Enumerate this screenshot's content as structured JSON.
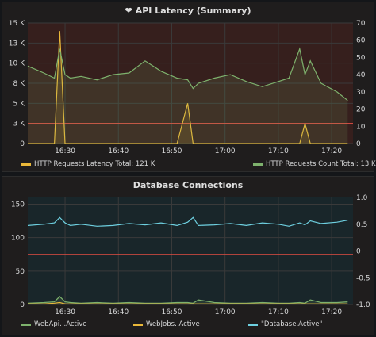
{
  "colors": {
    "latency": "#EAB839",
    "count": "#7EB26D",
    "webapi": "#7EB26D",
    "webjobs": "#EAB839",
    "database": "#6ED0E0",
    "threshold": "#E24D42"
  },
  "panel1": {
    "icon": "heart-icon",
    "title": "API Latency (Summary)",
    "y_ticks_left": [
      "0",
      "3 K",
      "5 K",
      "8 K",
      "10 K",
      "13 K",
      "15 K"
    ],
    "y_ticks_right": [
      "0",
      "10",
      "20",
      "30",
      "40",
      "50",
      "60",
      "70"
    ],
    "x_ticks": [
      "16:30",
      "16:40",
      "16:50",
      "17:00",
      "17:10",
      "17:20"
    ],
    "legend": [
      {
        "label": "HTTP Requests Latency  Total: 121 K"
      },
      {
        "label": "HTTP Requests Count  Total: 13 K"
      }
    ]
  },
  "panel2": {
    "title": "Database Connections",
    "y_ticks_left": [
      "0",
      "50",
      "100",
      "150"
    ],
    "y_ticks_right": [
      "-1.0",
      "-0.5",
      "0",
      "0.5",
      "1.0"
    ],
    "x_ticks": [
      "16:30",
      "16:40",
      "16:50",
      "17:00",
      "17:10",
      "17:20"
    ],
    "legend": [
      {
        "label": "WebApi.              .Active"
      },
      {
        "label": "WebJobs.              Active"
      },
      {
        "label": "\"Database.Active\""
      }
    ]
  },
  "chart_data": [
    {
      "type": "line",
      "title": "API Latency (Summary)",
      "x": [
        "16:23",
        "16:26",
        "16:28",
        "16:29",
        "16:30",
        "16:31",
        "16:33",
        "16:36",
        "16:39",
        "16:42",
        "16:45",
        "16:48",
        "16:51",
        "16:53",
        "16:54",
        "16:55",
        "16:58",
        "17:01",
        "17:04",
        "17:07",
        "17:10",
        "17:12",
        "17:14",
        "17:15",
        "17:16",
        "17:18",
        "17:21",
        "17:23"
      ],
      "ylim_left": [
        0,
        15000
      ],
      "ylim_right": [
        0,
        70
      ],
      "threshold_left": 2500,
      "series": [
        {
          "name": "HTTP Requests Latency",
          "axis": "left",
          "values": [
            0,
            0,
            0,
            14000,
            0,
            0,
            0,
            0,
            0,
            0,
            0,
            0,
            0,
            5000,
            0,
            0,
            0,
            0,
            0,
            0,
            0,
            0,
            0,
            2500,
            0,
            0,
            0,
            0
          ]
        },
        {
          "name": "HTTP Requests Count",
          "axis": "right",
          "values": [
            45,
            41,
            38,
            55,
            40,
            38,
            39,
            37,
            40,
            41,
            48,
            42,
            38,
            37,
            32,
            35,
            38,
            40,
            36,
            33,
            36,
            38,
            55,
            40,
            48,
            35,
            30,
            25
          ]
        }
      ]
    },
    {
      "type": "line",
      "title": "Database Connections",
      "x": [
        "16:23",
        "16:26",
        "16:28",
        "16:29",
        "16:30",
        "16:31",
        "16:33",
        "16:36",
        "16:39",
        "16:42",
        "16:45",
        "16:48",
        "16:51",
        "16:53",
        "16:54",
        "16:55",
        "16:58",
        "17:01",
        "17:04",
        "17:07",
        "17:10",
        "17:12",
        "17:14",
        "17:15",
        "17:16",
        "17:18",
        "17:21",
        "17:23"
      ],
      "ylim_left": [
        0,
        160
      ],
      "ylim_right": [
        -1.0,
        1.0
      ],
      "threshold_left": 75,
      "series": [
        {
          "name": "WebApi.              .Active",
          "axis": "left",
          "values": [
            2,
            3,
            4,
            12,
            4,
            3,
            2,
            3,
            2,
            3,
            2,
            2,
            3,
            3,
            2,
            7,
            3,
            2,
            2,
            3,
            2,
            2,
            3,
            2,
            7,
            3,
            3,
            4
          ]
        },
        {
          "name": "WebJobs.              Active",
          "axis": "left",
          "values": [
            1,
            1,
            2,
            3,
            1,
            1,
            1,
            1,
            1,
            1,
            1,
            1,
            1,
            1,
            1,
            1,
            1,
            1,
            1,
            1,
            1,
            1,
            1,
            1,
            1,
            1,
            1,
            1
          ]
        },
        {
          "name": "\"Database.Active\"",
          "axis": "left",
          "values": [
            118,
            120,
            122,
            130,
            122,
            118,
            120,
            117,
            118,
            121,
            119,
            122,
            118,
            123,
            130,
            118,
            119,
            121,
            118,
            122,
            120,
            117,
            122,
            119,
            125,
            121,
            123,
            126
          ]
        }
      ]
    }
  ]
}
